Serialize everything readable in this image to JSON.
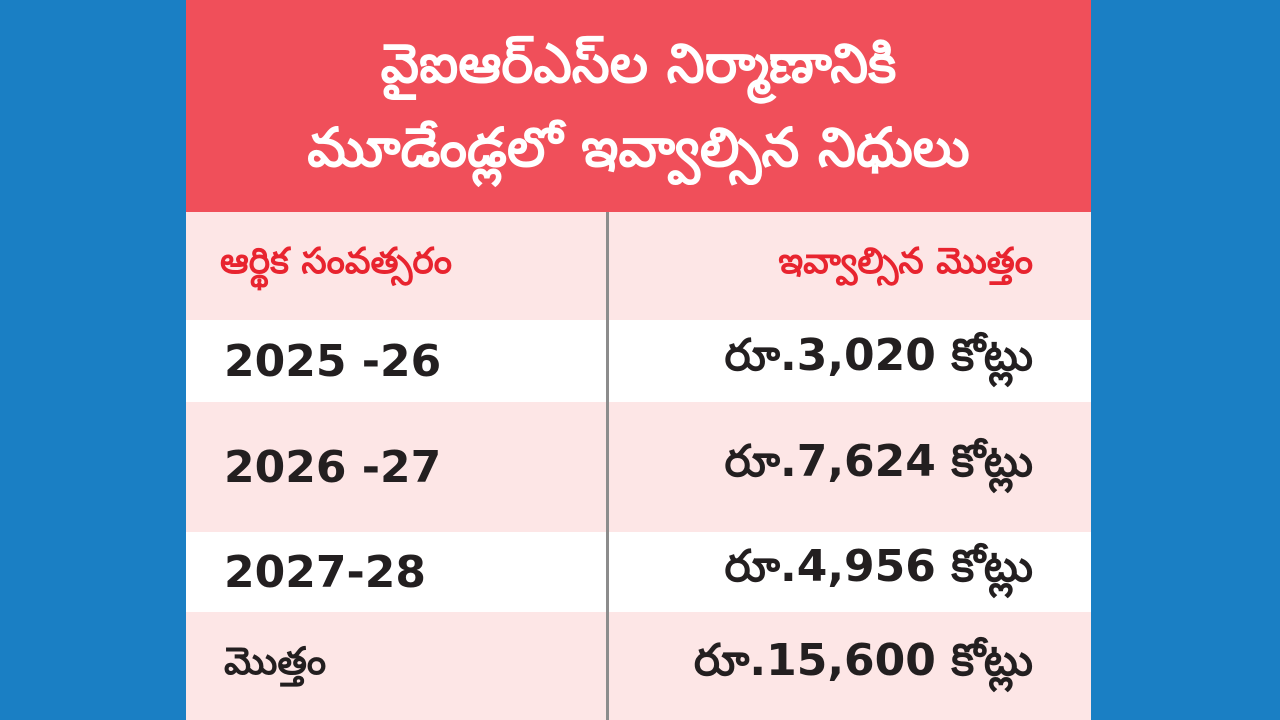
{
  "title": {
    "line1": "వైఐఆర్‌ఎస్‌ల నిర్మాణానికి",
    "line2": "మూడేండ్లలో ఇవ్వాల్సిన నిధులు"
  },
  "colors": {
    "background": "#1a7fc4",
    "title_bg": "#f04f5a",
    "header_text": "#e8242f",
    "row_alt": "#fde6e6",
    "body_text": "#231f20"
  },
  "chart_data": {
    "type": "table",
    "title": "వైఐఆర్‌ఎస్‌ల నిర్మాణానికి మూడేండ్లలో ఇవ్వాల్సిన నిధులు",
    "columns": [
      "ఆర్థిక సంవత్సరం",
      "ఇవ్వాల్సిన మొత్తం"
    ],
    "rows": [
      {
        "year": "2025 -26",
        "amount": "రూ.3,020 కోట్లు",
        "value_crore": 3020
      },
      {
        "year": "2026 -27",
        "amount": "రూ.7,624 కోట్లు",
        "value_crore": 7624
      },
      {
        "year": "2027-28",
        "amount": "రూ.4,956 కోట్లు",
        "value_crore": 4956
      }
    ],
    "total": {
      "label": "మొత్తం",
      "amount": "రూ.15,600 కోట్లు",
      "value_crore": 15600
    }
  }
}
